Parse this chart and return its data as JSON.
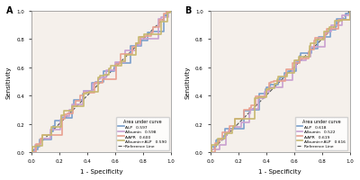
{
  "panel_A": {
    "label": "A",
    "legend_title": "Area under curve",
    "curves": [
      {
        "name": "ALP",
        "auc": "0.597",
        "color": "#7b9fcc",
        "lw": 1.2
      },
      {
        "name": "Albumin",
        "auc": "0.598",
        "color": "#c9a0d0",
        "lw": 1.2
      },
      {
        "name": "AAPR",
        "auc": "0.600",
        "color": "#e8a090",
        "lw": 1.2
      },
      {
        "name": "Albumin+ALP",
        "auc": "0.590",
        "color": "#c8b870",
        "lw": 1.2
      }
    ],
    "seeds": [
      42,
      7,
      13,
      99
    ]
  },
  "panel_B": {
    "label": "B",
    "legend_title": "Area under curve",
    "curves": [
      {
        "name": "ALP",
        "auc": "0.618",
        "color": "#7b9fcc",
        "lw": 1.2
      },
      {
        "name": "Albumin",
        "auc": "0.522",
        "color": "#c9a0d0",
        "lw": 1.2
      },
      {
        "name": "AAPR",
        "auc": "0.619",
        "color": "#e8a090",
        "lw": 1.2
      },
      {
        "name": "Albumin+ALP",
        "auc": "0.616",
        "color": "#c8b870",
        "lw": 1.2
      }
    ],
    "seeds": [
      55,
      23,
      77,
      11
    ]
  },
  "xlabel": "1 - Specificity",
  "ylabel": "Sensitivity",
  "bg_color": "#f5f0eb",
  "ref_color": "#555555"
}
